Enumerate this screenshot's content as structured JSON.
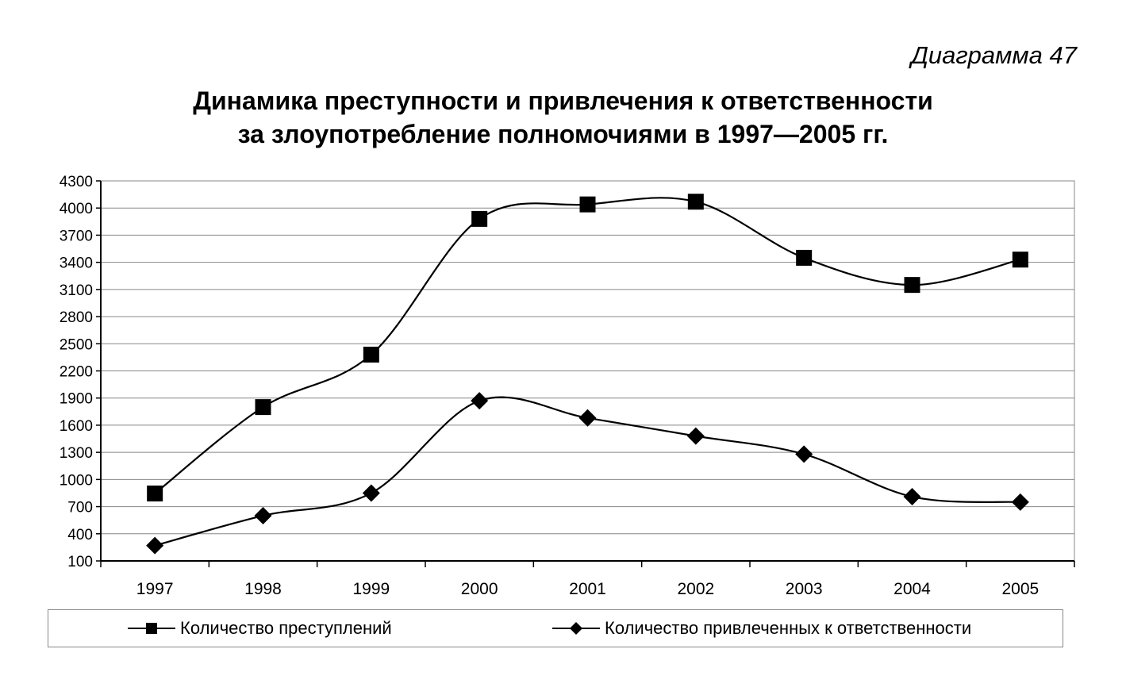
{
  "caption": "Диаграмма 47",
  "title_line1": "Динамика преступности и привлечения к ответственности",
  "title_line2": "за злоупотребление полномочиями в 1997—2005 гг.",
  "chart_data": {
    "type": "line",
    "categories": [
      "1997",
      "1998",
      "1999",
      "2000",
      "2001",
      "2002",
      "2003",
      "2004",
      "2005"
    ],
    "ylim": [
      100,
      4300
    ],
    "yticks": [
      100,
      400,
      700,
      1000,
      1300,
      1600,
      1900,
      2200,
      2500,
      2800,
      3100,
      3400,
      3700,
      4000,
      4300
    ],
    "grid": true,
    "legend_position": "bottom",
    "series": [
      {
        "name": "Количество преступлений",
        "marker": "square",
        "values": [
          845,
          1800,
          2380,
          3880,
          4040,
          4070,
          3450,
          3150,
          3430
        ]
      },
      {
        "name": "Количество привлеченных к ответственности",
        "marker": "diamond",
        "values": [
          270,
          600,
          850,
          1870,
          1680,
          1480,
          1280,
          810,
          750
        ]
      }
    ]
  }
}
